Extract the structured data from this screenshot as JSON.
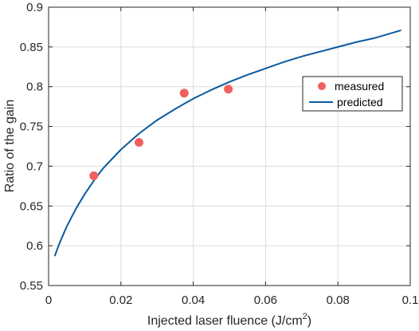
{
  "chart_data": {
    "type": "scatter",
    "xlabel_main": "Injected laser fluence (J/cm",
    "xlabel_sup": "2",
    "xlabel_tail": ")",
    "ylabel": "Ratio of the gain",
    "xlim": [
      0,
      0.1
    ],
    "ylim": [
      0.55,
      0.9
    ],
    "xticks": [
      0,
      0.02,
      0.04,
      0.06,
      0.08,
      0.1
    ],
    "xtick_labels": [
      "0",
      "0.02",
      "0.04",
      "0.06",
      "0.08",
      "0.1"
    ],
    "yticks": [
      0.55,
      0.6,
      0.65,
      0.7,
      0.75,
      0.8,
      0.85,
      0.9
    ],
    "ytick_labels": [
      "0.55",
      "0.6",
      "0.65",
      "0.7",
      "0.75",
      "0.8",
      "0.85",
      "0.9"
    ],
    "grid": true,
    "legend_position": "right",
    "series": [
      {
        "name": "measured",
        "kind": "scatter",
        "color": "#f06060",
        "x": [
          0.0125,
          0.025,
          0.0375,
          0.0497
        ],
        "y": [
          0.688,
          0.73,
          0.792,
          0.797
        ]
      },
      {
        "name": "predicted",
        "kind": "line",
        "color": "#0a5aa0",
        "x": [
          0.0017,
          0.003,
          0.005,
          0.0075,
          0.01,
          0.0125,
          0.015,
          0.02,
          0.025,
          0.03,
          0.035,
          0.04,
          0.045,
          0.05,
          0.055,
          0.06,
          0.065,
          0.07,
          0.075,
          0.08,
          0.085,
          0.09,
          0.0975
        ],
        "y": [
          0.587,
          0.603,
          0.624,
          0.646,
          0.665,
          0.682,
          0.697,
          0.721,
          0.741,
          0.758,
          0.772,
          0.785,
          0.796,
          0.806,
          0.815,
          0.823,
          0.831,
          0.838,
          0.844,
          0.85,
          0.856,
          0.861,
          0.871
        ]
      }
    ]
  }
}
